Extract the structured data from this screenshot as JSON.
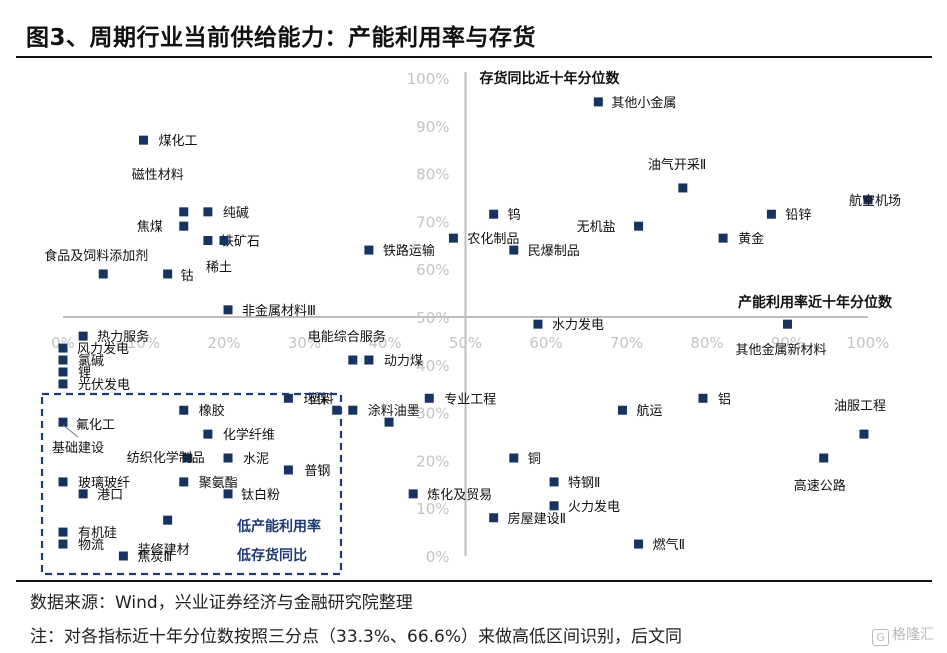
{
  "header": {
    "title": "图3、周期行业当前供给能力：产能利用率与存货"
  },
  "footer": {
    "source": "数据来源：Wind，兴业证券经济与金融研究院整理",
    "note": "注：对各指标近十年分位数按照三分点（33.3%、66.6%）来做高低区间识别，后文同",
    "watermark": "格隆汇"
  },
  "colors": {
    "marker": "#17335f",
    "axis": "#bdbdbd",
    "box": "#1f3b73",
    "tick": "#c4c4c4"
  },
  "chart_data": {
    "type": "scatter",
    "title": "",
    "xlabel": "产能利用率近十年分位数",
    "ylabel": "存货同比近十年分位数",
    "xlim": [
      0,
      100
    ],
    "ylim": [
      0,
      100
    ],
    "x_ticks": [
      "0%",
      "10%",
      "20%",
      "30%",
      "40%",
      "50%",
      "60%",
      "70%",
      "80%",
      "90%",
      "100%"
    ],
    "y_ticks": [
      "0%",
      "10%",
      "20%",
      "30%",
      "40%",
      "50%",
      "60%",
      "70%",
      "80%",
      "90%",
      "100%"
    ],
    "x_axis_crosses_y_at": 50,
    "y_axis_crosses_x_at": 50,
    "grid": false,
    "points": [
      {
        "name": "煤化工",
        "x": 10,
        "y": 87
      },
      {
        "name": "磁性材料",
        "x": 15,
        "y": 72
      },
      {
        "name": "纯碱",
        "x": 18,
        "y": 72
      },
      {
        "name": "焦煤",
        "x": 15,
        "y": 69
      },
      {
        "name": "铁矿石",
        "x": 18,
        "y": 66
      },
      {
        "name": "稀土",
        "x": 20,
        "y": 66
      },
      {
        "name": "食品及饲料添加剂",
        "x": 5,
        "y": 59
      },
      {
        "name": "钴",
        "x": 13,
        "y": 59
      },
      {
        "name": "非金属材料Ⅲ",
        "x": 20.5,
        "y": 51.5
      },
      {
        "name": "铁路运输",
        "x": 38,
        "y": 64
      },
      {
        "name": "农化制品",
        "x": 48.5,
        "y": 66.5
      },
      {
        "name": "钨",
        "x": 53.5,
        "y": 71.5
      },
      {
        "name": "民爆制品",
        "x": 56,
        "y": 64
      },
      {
        "name": "其他小金属",
        "x": 66.5,
        "y": 95
      },
      {
        "name": "油气开采Ⅱ",
        "x": 77,
        "y": 77
      },
      {
        "name": "无机盐",
        "x": 71.5,
        "y": 69
      },
      {
        "name": "铅锌",
        "x": 88,
        "y": 71.5
      },
      {
        "name": "黄金",
        "x": 82,
        "y": 66.5
      },
      {
        "name": "航空机场",
        "x": 100,
        "y": 74.5
      },
      {
        "name": "水力发电",
        "x": 59,
        "y": 48.5
      },
      {
        "name": "其他金属新材料",
        "x": 90,
        "y": 48.5
      },
      {
        "name": "热力服务",
        "x": 2.5,
        "y": 46
      },
      {
        "name": "风力发电",
        "x": 0,
        "y": 43.5
      },
      {
        "name": "氯碱",
        "x": 0,
        "y": 41
      },
      {
        "name": "锂",
        "x": 0,
        "y": 38.5
      },
      {
        "name": "光伏发电",
        "x": 0,
        "y": 36
      },
      {
        "name": "电能综合服务",
        "x": 36,
        "y": 41
      },
      {
        "name": "动力煤",
        "x": 38,
        "y": 41
      },
      {
        "name": "环保",
        "x": 28,
        "y": 33
      },
      {
        "name": "塑料",
        "x": 34,
        "y": 30.5
      },
      {
        "name": "涂料油墨",
        "x": 36,
        "y": 30.5
      },
      {
        "name": "专业工程",
        "x": 45.5,
        "y": 33
      },
      {
        "name": "氟化工",
        "x": 40.5,
        "y": 28
      },
      {
        "name": "基础建设",
        "x": 0,
        "y": 28
      },
      {
        "name": "橡胶",
        "x": 15,
        "y": 30.5
      },
      {
        "name": "化学纤维",
        "x": 18,
        "y": 25.5
      },
      {
        "name": "纺织化学制品",
        "x": 15.5,
        "y": 20.5
      },
      {
        "name": "水泥",
        "x": 20.5,
        "y": 20.5
      },
      {
        "name": "普钢",
        "x": 28,
        "y": 18
      },
      {
        "name": "玻璃玻纤",
        "x": 0,
        "y": 15.5
      },
      {
        "name": "聚氨酯",
        "x": 15,
        "y": 15.5
      },
      {
        "name": "港口",
        "x": 2.5,
        "y": 13
      },
      {
        "name": "钛白粉",
        "x": 20.5,
        "y": 13
      },
      {
        "name": "有机硅",
        "x": 0,
        "y": 5
      },
      {
        "name": "物流",
        "x": 0,
        "y": 2.5
      },
      {
        "name": "装修建材",
        "x": 13,
        "y": 7.5
      },
      {
        "name": "焦炭Ⅲ",
        "x": 7.5,
        "y": 0
      },
      {
        "name": "铝",
        "x": 79.5,
        "y": 33
      },
      {
        "name": "航运",
        "x": 69.5,
        "y": 30.5
      },
      {
        "name": "油服工程",
        "x": 99.5,
        "y": 25.5
      },
      {
        "name": "铜",
        "x": 56,
        "y": 20.5
      },
      {
        "name": "高速公路",
        "x": 94.5,
        "y": 20.5
      },
      {
        "name": "特钢Ⅱ",
        "x": 61,
        "y": 15.5
      },
      {
        "name": "炼化及贸易",
        "x": 43.5,
        "y": 13
      },
      {
        "name": "火力发电",
        "x": 61,
        "y": 10.5
      },
      {
        "name": "房屋建设Ⅱ",
        "x": 53.5,
        "y": 8
      },
      {
        "name": "燃气Ⅱ",
        "x": 71.5,
        "y": 2.5
      }
    ],
    "annotation": {
      "lines": [
        "低产能利用率",
        "低存货同比"
      ],
      "region": "low-utilization / low-inventory (bottom-left, dashed box)"
    }
  }
}
